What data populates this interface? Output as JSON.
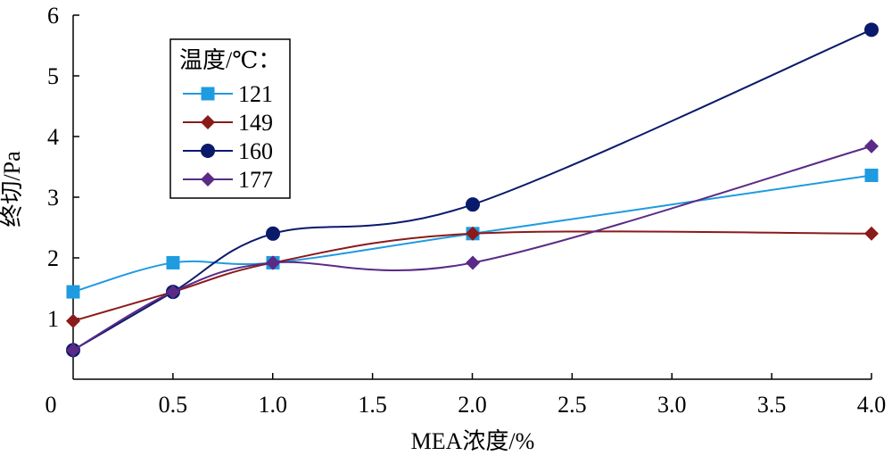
{
  "chart_data": {
    "type": "line",
    "title": "",
    "xlabel": "MEA浓度/%",
    "ylabel": "终切/Pa",
    "x_ticks": [
      "0",
      "0.5",
      "1.0",
      "1.5",
      "2.0",
      "2.5",
      "3.0",
      "3.5",
      "4.0"
    ],
    "y_ticks": [
      "1",
      "2",
      "3",
      "4",
      "5",
      "6"
    ],
    "xlim": [
      0,
      4
    ],
    "ylim": [
      0,
      6
    ],
    "grid": false,
    "legend_title": "温度/℃：",
    "legend_position": "top-left",
    "series": [
      {
        "name": "121",
        "color": "#1f9be0",
        "marker": "square",
        "x": [
          0,
          0.5,
          1.0,
          2.0,
          4.0
        ],
        "y": [
          1.44,
          1.92,
          1.92,
          2.4,
          3.36
        ]
      },
      {
        "name": "149",
        "color": "#8b1a1a",
        "marker": "diamond",
        "x": [
          0,
          0.5,
          1.0,
          2.0,
          4.0
        ],
        "y": [
          0.96,
          1.44,
          1.92,
          2.4,
          2.4
        ]
      },
      {
        "name": "160",
        "color": "#0a1a6b",
        "marker": "circle",
        "x": [
          0,
          0.5,
          1.0,
          2.0,
          4.0
        ],
        "y": [
          0.48,
          1.44,
          2.4,
          2.88,
          5.76
        ]
      },
      {
        "name": "177",
        "color": "#5b2a86",
        "marker": "diamond",
        "x": [
          0,
          0.5,
          1.0,
          2.0,
          4.0
        ],
        "y": [
          0.48,
          1.44,
          1.92,
          1.92,
          3.84
        ]
      }
    ]
  }
}
